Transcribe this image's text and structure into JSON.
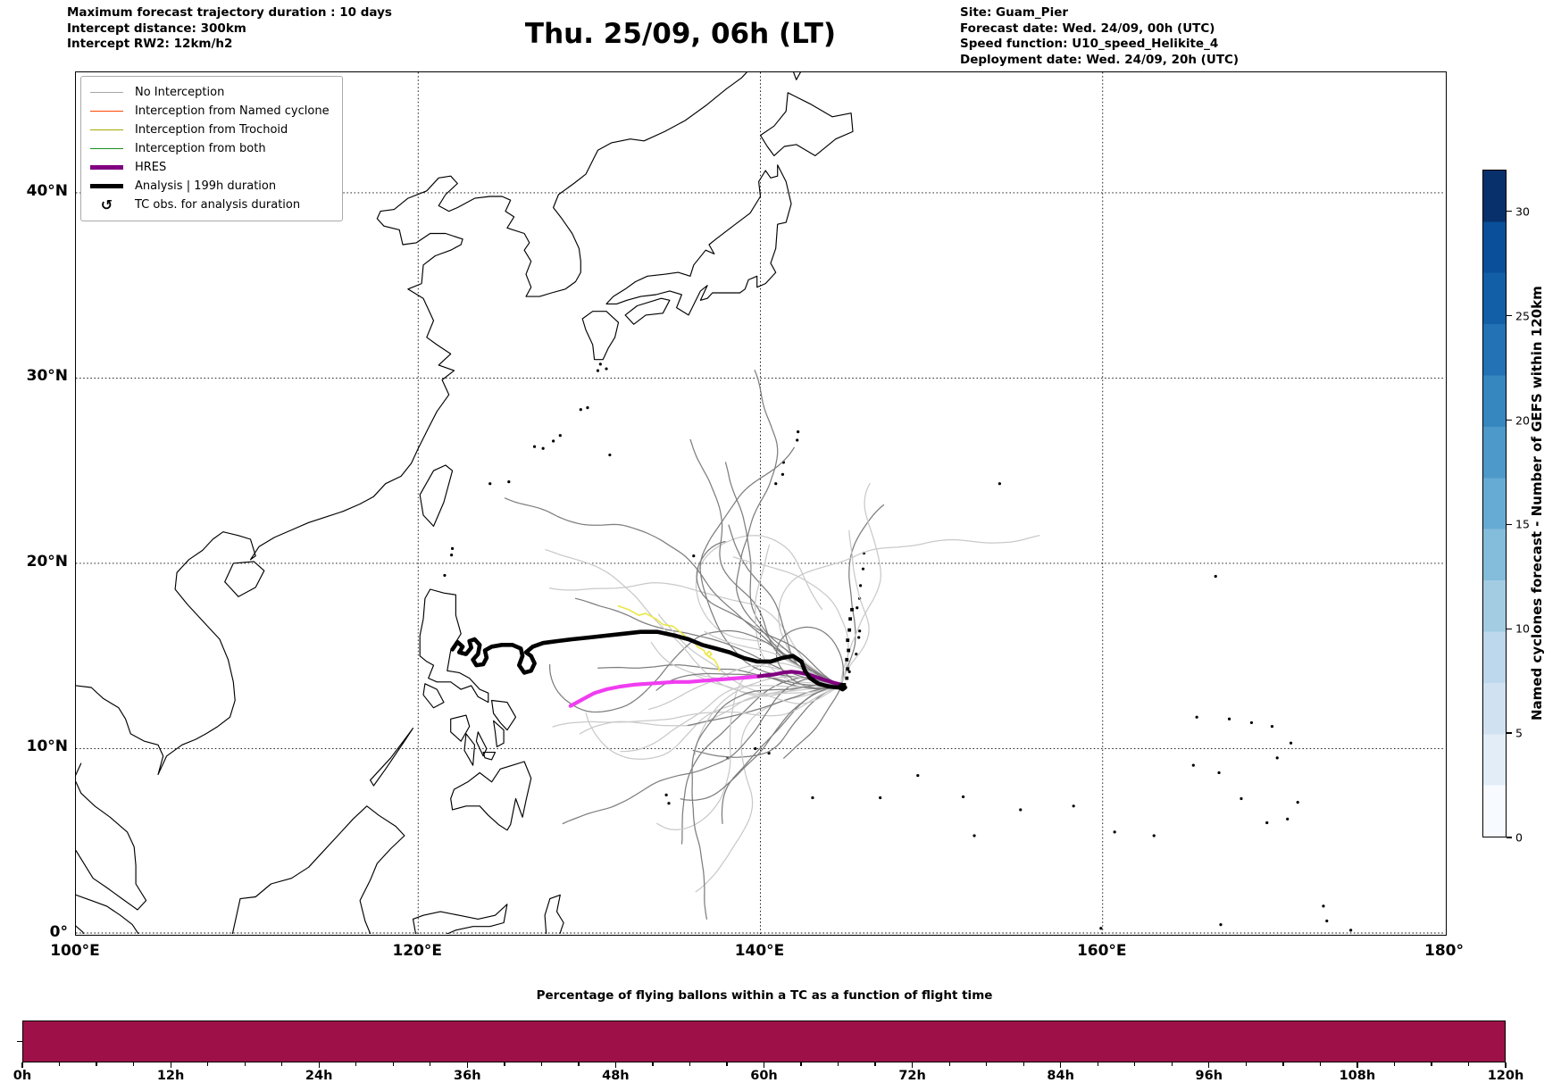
{
  "header": {
    "left_lines": [
      "Maximum forecast trajectory duration : 10 days",
      "Intercept distance: 300km",
      "Intercept RW2: 12km/h2"
    ],
    "title": "Thu. 25/09, 06h (LT)",
    "right_lines": [
      "Site: Guam_Pier",
      "Forecast date: Wed. 24/09, 00h (UTC)",
      "Speed function: U10_speed_Helikite_4",
      "Deployment date: Wed. 24/09, 20h (UTC)"
    ]
  },
  "legend": {
    "items": [
      {
        "label": "No Interception",
        "color": "#a6a6a6",
        "kind": "line"
      },
      {
        "label": "Interception from Named cyclone",
        "color": "#ff4500",
        "kind": "line"
      },
      {
        "label": "Interception from Trochoid",
        "color": "#a8a800",
        "kind": "line"
      },
      {
        "label": "Interception from both",
        "color": "#1e8c1e",
        "kind": "line"
      },
      {
        "label": "HRES",
        "color": "#800080",
        "kind": "thick"
      },
      {
        "label": "Analysis | 199h duration",
        "color": "#000000",
        "kind": "thick"
      },
      {
        "label": "TC obs. for analysis duration",
        "color": "#000000",
        "kind": "marker",
        "marker": "↺"
      }
    ]
  },
  "map": {
    "extent": {
      "lon_min": 100,
      "lon_max": 180,
      "lat_min": 0,
      "lat_max": 46.5
    },
    "x_ticks": [
      {
        "label": "100°E",
        "lon": 100
      },
      {
        "label": "120°E",
        "lon": 120
      },
      {
        "label": "140°E",
        "lon": 140
      },
      {
        "label": "160°E",
        "lon": 160
      },
      {
        "label": "180°",
        "lon": 180
      }
    ],
    "y_ticks": [
      {
        "label": "0°",
        "lat": 0
      },
      {
        "label": "10°N",
        "lat": 10
      },
      {
        "label": "20°N",
        "lat": 20
      },
      {
        "label": "30°N",
        "lat": 30
      },
      {
        "label": "40°N",
        "lat": 40
      }
    ],
    "grid_lons": [
      120,
      140,
      160
    ],
    "grid_lats": [
      10,
      20,
      30,
      40
    ]
  },
  "colorbar": {
    "label": "Named cyclones forecast - Number of GEFS within 120km",
    "ticks": [
      0,
      5,
      10,
      15,
      20,
      25,
      30
    ],
    "vmin": 0,
    "vmax": 32,
    "colors": [
      "#f7fbff",
      "#e2edf8",
      "#d0e1f2",
      "#bdd7ec",
      "#a3cce3",
      "#84bcdb",
      "#66abd4",
      "#4d99ca",
      "#3686c0",
      "#2372b5",
      "#135fa7",
      "#094f99",
      "#08306b"
    ]
  },
  "chart_data": [
    {
      "type": "line",
      "name": "balloon-trajectory-map",
      "origin_site": "Guam_Pier",
      "origin_lonlat": [
        144.7,
        13.4
      ],
      "series": [
        {
          "name": "Analysis | 199h duration",
          "color": "#000000",
          "width": 4.6,
          "points": [
            [
              122.0,
              15.35
            ],
            [
              122.3,
              15.75
            ],
            [
              122.6,
              15.5
            ],
            [
              122.4,
              15.2
            ],
            [
              122.8,
              15.1
            ],
            [
              123.1,
              15.45
            ],
            [
              123.0,
              15.8
            ],
            [
              123.3,
              15.9
            ],
            [
              123.6,
              15.6
            ],
            [
              123.5,
              15.1
            ],
            [
              123.2,
              14.8
            ],
            [
              123.4,
              14.5
            ],
            [
              123.8,
              14.55
            ],
            [
              124.0,
              14.9
            ],
            [
              123.9,
              15.3
            ],
            [
              124.3,
              15.5
            ],
            [
              124.9,
              15.6
            ],
            [
              125.5,
              15.6
            ],
            [
              126.0,
              15.4
            ],
            [
              126.1,
              15.0
            ],
            [
              125.9,
              14.5
            ],
            [
              126.2,
              14.1
            ],
            [
              126.6,
              14.2
            ],
            [
              126.8,
              14.6
            ],
            [
              126.6,
              15.0
            ],
            [
              126.3,
              15.2
            ],
            [
              126.7,
              15.5
            ],
            [
              127.3,
              15.7
            ],
            [
              128.1,
              15.8
            ],
            [
              129.0,
              15.9
            ],
            [
              130.0,
              16.0
            ],
            [
              131.0,
              16.1
            ],
            [
              132.0,
              16.2
            ],
            [
              133.0,
              16.3
            ],
            [
              134.0,
              16.3
            ],
            [
              135.0,
              16.1
            ],
            [
              135.8,
              15.9
            ],
            [
              136.6,
              15.6
            ],
            [
              137.4,
              15.4
            ],
            [
              138.2,
              15.2
            ],
            [
              139.0,
              14.9
            ],
            [
              139.8,
              14.7
            ],
            [
              140.6,
              14.7
            ],
            [
              141.3,
              14.9
            ],
            [
              141.9,
              15.0
            ],
            [
              142.4,
              14.7
            ],
            [
              142.6,
              14.2
            ],
            [
              142.9,
              13.8
            ],
            [
              143.4,
              13.5
            ],
            [
              144.0,
              13.35
            ],
            [
              144.5,
              13.3
            ],
            [
              144.8,
              13.4
            ],
            [
              144.95,
              13.3
            ],
            [
              144.8,
              13.2
            ],
            [
              144.6,
              13.3
            ],
            [
              144.75,
              13.45
            ]
          ]
        },
        {
          "name": "HRES (east segment)",
          "color": "#800080",
          "width": 4.2,
          "points": [
            [
              144.75,
              13.45
            ],
            [
              144.3,
              13.55
            ],
            [
              143.8,
              13.7
            ],
            [
              143.3,
              13.85
            ],
            [
              142.8,
              14.0
            ],
            [
              142.3,
              14.1
            ],
            [
              141.8,
              14.15
            ],
            [
              141.3,
              14.1
            ],
            [
              140.8,
              14.0
            ],
            [
              140.3,
              13.95
            ],
            [
              139.9,
              13.9
            ]
          ]
        },
        {
          "name": "HRES (west segment)",
          "color": "#f03df0",
          "width": 4.2,
          "points": [
            [
              139.9,
              13.9
            ],
            [
              139.3,
              13.85
            ],
            [
              138.6,
              13.8
            ],
            [
              137.9,
              13.75
            ],
            [
              137.2,
              13.7
            ],
            [
              136.5,
              13.65
            ],
            [
              135.8,
              13.6
            ],
            [
              135.0,
              13.6
            ],
            [
              134.2,
              13.55
            ],
            [
              133.4,
              13.5
            ],
            [
              132.6,
              13.45
            ],
            [
              131.8,
              13.35
            ],
            [
              131.0,
              13.2
            ],
            [
              130.3,
              13.0
            ],
            [
              129.7,
              12.7
            ],
            [
              129.2,
              12.45
            ],
            [
              128.9,
              12.3
            ]
          ]
        },
        {
          "name": "Trochoid track",
          "color": "#ece84e",
          "width": 1.7,
          "points": [
            [
              131.7,
              17.7
            ],
            [
              132.3,
              17.5
            ],
            [
              132.9,
              17.2
            ],
            [
              133.3,
              17.3
            ],
            [
              133.9,
              17.0
            ],
            [
              134.3,
              16.7
            ],
            [
              134.9,
              16.6
            ],
            [
              135.3,
              16.3
            ],
            [
              135.7,
              16.0
            ],
            [
              136.1,
              15.8
            ],
            [
              136.3,
              15.5
            ],
            [
              136.7,
              15.3
            ],
            [
              136.8,
              15.1
            ],
            [
              137.0,
              14.95
            ],
            [
              137.15,
              15.1
            ],
            [
              137.0,
              15.25
            ],
            [
              136.85,
              15.1
            ],
            [
              137.0,
              14.95
            ],
            [
              137.3,
              14.8
            ],
            [
              137.5,
              14.5
            ],
            [
              137.6,
              14.2
            ]
          ]
        }
      ],
      "tc_obs_points": [
        [
          144.9,
          13.45
        ],
        [
          145.05,
          13.8
        ],
        [
          145.1,
          14.3
        ],
        [
          145.05,
          14.8
        ],
        [
          145.15,
          15.3
        ],
        [
          145.1,
          15.85
        ],
        [
          145.2,
          16.4
        ],
        [
          145.25,
          17.0
        ],
        [
          145.35,
          17.5
        ]
      ],
      "ensemble": {
        "label": "No Interception",
        "count": 40,
        "colors": [
          "#c9c9c9",
          "#7e7e7e"
        ]
      }
    },
    {
      "type": "bar",
      "title": "Percentage of flying ballons within a TC as a function of flight time",
      "x_tick_labels": [
        "0h",
        "12h",
        "24h",
        "36h",
        "48h",
        "60h",
        "72h",
        "84h",
        "96h",
        "108h",
        "120h"
      ],
      "x_hours": [
        0,
        12,
        24,
        36,
        48,
        60,
        72,
        84,
        96,
        108,
        120
      ],
      "values_percent": [
        100,
        100,
        100,
        100,
        100,
        100,
        100,
        100,
        100,
        100,
        100
      ],
      "bar_color": "#9e1148",
      "ylim": [
        0,
        100
      ]
    }
  ]
}
